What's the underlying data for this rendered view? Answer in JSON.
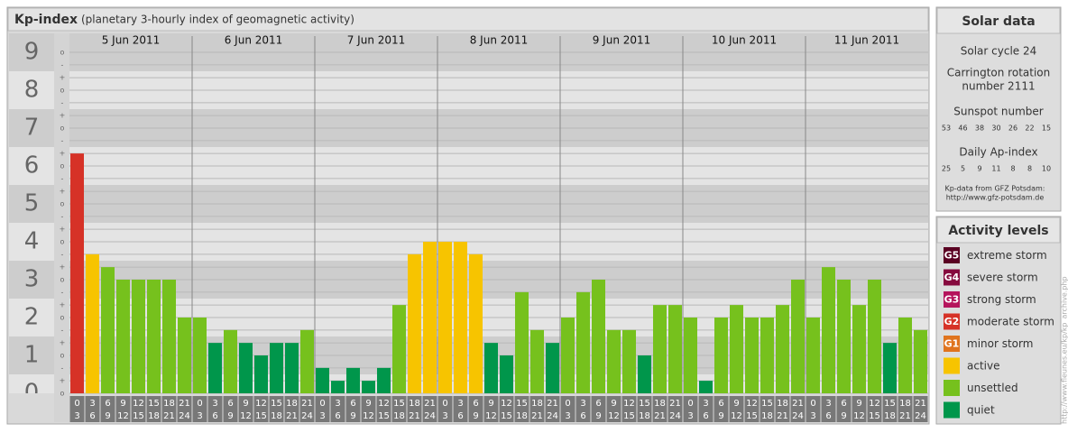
{
  "chart_data": {
    "type": "bar",
    "title": "Kp-index",
    "subtitle": "(planetary 3-hourly index of geomagnetic activity)",
    "ylim": [
      0,
      9.5
    ],
    "digit_ticks": [
      0,
      1,
      2,
      3,
      4,
      5,
      6,
      7,
      8,
      9
    ],
    "yticks": [
      {
        "value": 0,
        "label": "o"
      },
      {
        "value": 0.33,
        "label": "+"
      },
      {
        "value": 0.67,
        "label": "-"
      },
      {
        "value": 1,
        "label": "o"
      },
      {
        "value": 1.33,
        "label": "+"
      },
      {
        "value": 1.67,
        "label": "-"
      },
      {
        "value": 2,
        "label": "o"
      },
      {
        "value": 2.33,
        "label": "+"
      },
      {
        "value": 2.67,
        "label": "-"
      },
      {
        "value": 3,
        "label": "o"
      },
      {
        "value": 3.33,
        "label": "+"
      },
      {
        "value": 3.67,
        "label": "-"
      },
      {
        "value": 4,
        "label": "o"
      },
      {
        "value": 4.33,
        "label": "+"
      },
      {
        "value": 4.67,
        "label": "-"
      },
      {
        "value": 5,
        "label": "o"
      },
      {
        "value": 5.33,
        "label": "+"
      },
      {
        "value": 5.67,
        "label": "-"
      },
      {
        "value": 6,
        "label": "o"
      },
      {
        "value": 6.33,
        "label": "+"
      },
      {
        "value": 6.67,
        "label": "-"
      },
      {
        "value": 7,
        "label": "o"
      },
      {
        "value": 7.33,
        "label": "+"
      },
      {
        "value": 7.67,
        "label": "-"
      },
      {
        "value": 8,
        "label": "o"
      },
      {
        "value": 8.33,
        "label": "+"
      },
      {
        "value": 8.67,
        "label": "-"
      },
      {
        "value": 9,
        "label": "o"
      }
    ],
    "band_colors": [
      "#e4e4e4",
      "#cdcdcd"
    ],
    "hour_ranges": [
      [
        0,
        3
      ],
      [
        3,
        6
      ],
      [
        6,
        9
      ],
      [
        9,
        12
      ],
      [
        12,
        15
      ],
      [
        15,
        18
      ],
      [
        18,
        21
      ],
      [
        21,
        24
      ]
    ],
    "days": [
      {
        "date": "5 Jun 2011",
        "values": [
          6.33,
          3.67,
          3.33,
          3,
          3,
          3,
          3,
          2
        ],
        "colors": [
          "#d63227",
          "#f7c400",
          "#76c11d",
          "#76c11d",
          "#76c11d",
          "#76c11d",
          "#76c11d",
          "#76c11d"
        ]
      },
      {
        "date": "6 Jun 2011",
        "values": [
          2,
          1.33,
          1.67,
          1.33,
          1,
          1.33,
          1.33,
          1.67
        ],
        "colors": [
          "#76c11d",
          "#00964b",
          "#76c11d",
          "#00964b",
          "#00964b",
          "#00964b",
          "#00964b",
          "#76c11d"
        ]
      },
      {
        "date": "7 Jun 2011",
        "values": [
          0.67,
          0.33,
          0.67,
          0.33,
          0.67,
          2.33,
          3.67,
          4
        ],
        "colors": [
          "#00964b",
          "#00964b",
          "#00964b",
          "#00964b",
          "#00964b",
          "#76c11d",
          "#f7c400",
          "#f7c400"
        ]
      },
      {
        "date": "8 Jun 2011",
        "values": [
          4,
          4,
          3.67,
          1.33,
          1,
          2.67,
          1.67,
          1.33
        ],
        "colors": [
          "#f7c400",
          "#f7c400",
          "#f7c400",
          "#00964b",
          "#00964b",
          "#76c11d",
          "#76c11d",
          "#00964b"
        ]
      },
      {
        "date": "9 Jun 2011",
        "values": [
          2,
          2.67,
          3,
          1.67,
          1.67,
          1,
          2.33,
          2.33
        ],
        "colors": [
          "#76c11d",
          "#76c11d",
          "#76c11d",
          "#76c11d",
          "#76c11d",
          "#00964b",
          "#76c11d",
          "#76c11d"
        ]
      },
      {
        "date": "10 Jun 2011",
        "values": [
          2,
          0.33,
          2,
          2.33,
          2,
          2,
          2.33,
          3
        ],
        "colors": [
          "#76c11d",
          "#00964b",
          "#76c11d",
          "#76c11d",
          "#76c11d",
          "#76c11d",
          "#76c11d",
          "#76c11d"
        ]
      },
      {
        "date": "11 Jun 2011",
        "values": [
          2,
          3.33,
          3,
          2.33,
          3,
          1.33,
          2,
          1.67
        ],
        "colors": [
          "#76c11d",
          "#76c11d",
          "#76c11d",
          "#76c11d",
          "#76c11d",
          "#00964b",
          "#76c11d",
          "#76c11d"
        ]
      }
    ]
  },
  "solar_data": {
    "title": "Solar data",
    "cycle": "Solar cycle 24",
    "carrington": [
      "Carrington rotation",
      "number 2111"
    ],
    "sunspot_label": "Sunspot number",
    "sunspot": [
      53,
      46,
      38,
      30,
      26,
      22,
      15
    ],
    "ap_label": "Daily Ap-index",
    "ap": [
      25,
      5,
      9,
      11,
      8,
      8,
      10
    ],
    "source": [
      "Kp-data from GFZ Potsdam:",
      "http://www.gfz-potsdam.de"
    ]
  },
  "activity_levels": {
    "title": "Activity levels",
    "items": [
      {
        "code": "G5",
        "label": "extreme storm",
        "color": "#5a0022"
      },
      {
        "code": "G4",
        "label": "severe storm",
        "color": "#860a3e"
      },
      {
        "code": "G3",
        "label": "strong storm",
        "color": "#b5145c"
      },
      {
        "code": "G2",
        "label": "moderate storm",
        "color": "#d63227"
      },
      {
        "code": "G1",
        "label": "minor storm",
        "color": "#e0741e"
      },
      {
        "label": "active",
        "color": "#f7c400"
      },
      {
        "label": "unsettled",
        "color": "#76c11d"
      },
      {
        "label": "quiet",
        "color": "#00964b"
      }
    ]
  },
  "watermark": "http://www.fleunes.eu/kp/kp_archive.php"
}
